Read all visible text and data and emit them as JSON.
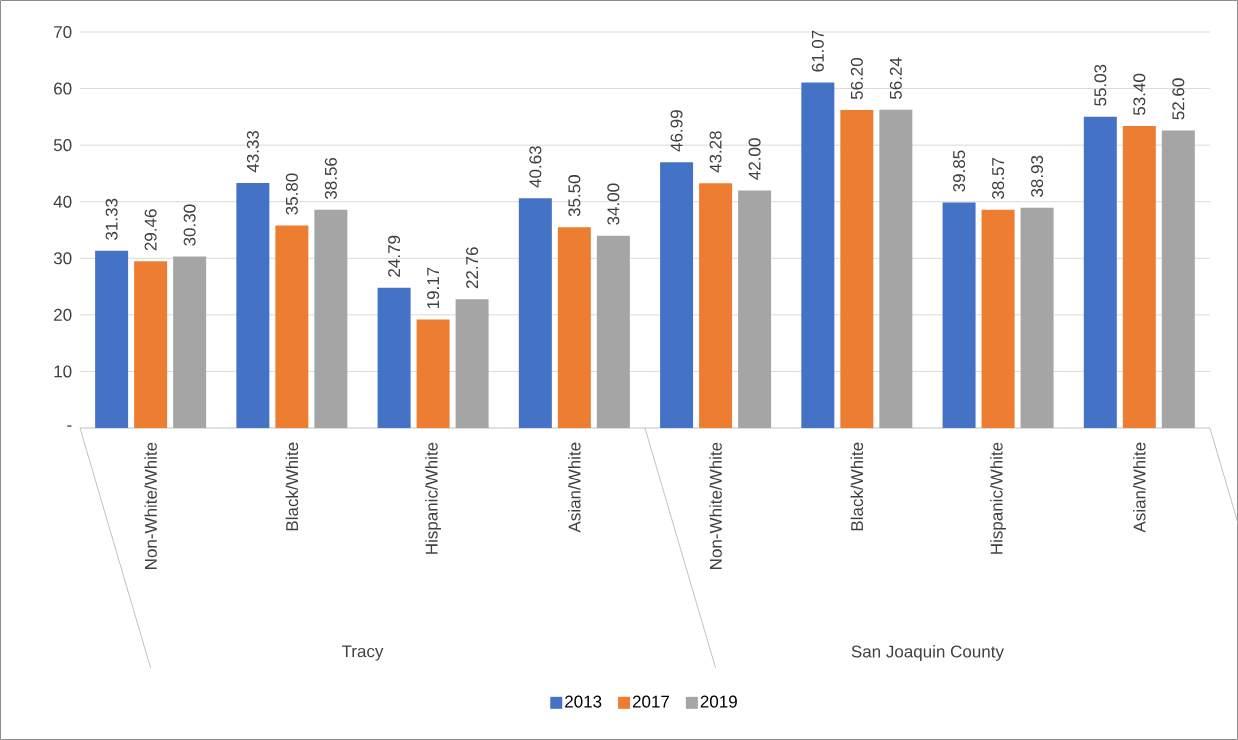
{
  "chart_data": {
    "type": "bar",
    "categories": [
      "Non-White/White",
      "Black/White",
      "Hispanic/White",
      "Asian/White",
      "Non-White/White",
      "Black/White",
      "Hispanic/White",
      "Asian/White"
    ],
    "series": [
      {
        "name": "2013",
        "color": "#4472c4",
        "values": [
          31.33,
          43.33,
          24.79,
          40.63,
          46.99,
          61.07,
          39.85,
          55.03
        ],
        "value_labels": [
          "31.33",
          "43.33",
          "24.79",
          "40.63",
          "46.99",
          "61.07",
          "39.85",
          "55.03"
        ]
      },
      {
        "name": "2017",
        "color": "#ed7d31",
        "values": [
          29.46,
          35.8,
          19.17,
          35.5,
          43.28,
          56.2,
          38.57,
          53.4
        ],
        "value_labels": [
          "29.46",
          "35.80",
          "19.17",
          "35.50",
          "43.28",
          "56.20",
          "38.57",
          "53.40"
        ]
      },
      {
        "name": "2019",
        "color": "#a5a5a5",
        "values": [
          30.3,
          38.56,
          22.76,
          34.0,
          42.0,
          56.24,
          38.93,
          52.6
        ],
        "value_labels": [
          "30.30",
          "38.56",
          "22.76",
          "34.00",
          "42.00",
          "56.24",
          "38.93",
          "52.60"
        ]
      }
    ],
    "annotations": [
      "Tracy",
      "San Joaquin County"
    ],
    "ylim": [
      0,
      70
    ],
    "yticks": [
      {
        "value": 0,
        "label": "-"
      },
      10,
      20,
      30,
      40,
      50,
      60,
      70
    ],
    "grid": "y",
    "legend": "bottom"
  }
}
